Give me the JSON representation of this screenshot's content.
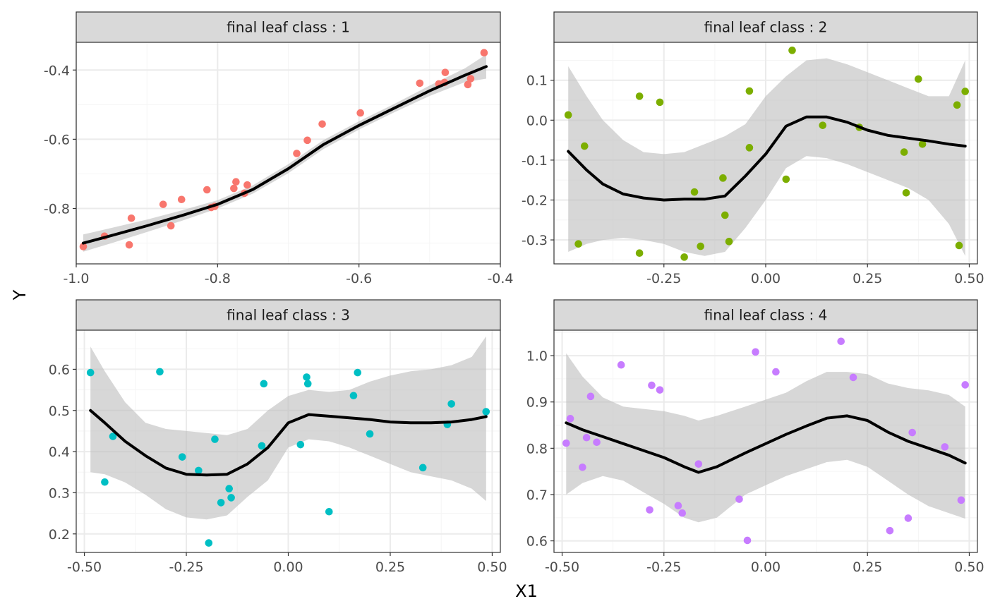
{
  "axis_titles": {
    "x": "X1",
    "y": "Y"
  },
  "colors": {
    "panel_border": "#333333",
    "strip_fill": "#d9d9d9",
    "grid_major": "#ebebeb",
    "grid_minor": "#f5f5f5",
    "smooth_line": "#000000",
    "ribbon": "#bdbdbd"
  },
  "chart_data": [
    {
      "type": "scatter",
      "strip_label": "final leaf class : 1",
      "point_color": "#f8766d",
      "xlim": [
        -1.0,
        -0.4
      ],
      "ylim": [
        -0.96,
        -0.32
      ],
      "x_ticks": [
        -1.0,
        -0.8,
        -0.6,
        -0.4
      ],
      "x_tick_labels": [
        "-1.0",
        "-0.8",
        "-0.6",
        "-0.4"
      ],
      "y_ticks": [
        -0.8,
        -0.6,
        -0.4
      ],
      "y_tick_labels": [
        "-0.8",
        "-0.6",
        "-0.4"
      ],
      "points": [
        [
          -0.99,
          -0.91
        ],
        [
          -0.96,
          -0.88
        ],
        [
          -0.925,
          -0.905
        ],
        [
          -0.922,
          -0.828
        ],
        [
          -0.877,
          -0.788
        ],
        [
          -0.866,
          -0.85
        ],
        [
          -0.851,
          -0.774
        ],
        [
          -0.815,
          -0.746
        ],
        [
          -0.809,
          -0.797
        ],
        [
          -0.804,
          -0.794
        ],
        [
          -0.777,
          -0.742
        ],
        [
          -0.774,
          -0.723
        ],
        [
          -0.762,
          -0.756
        ],
        [
          -0.758,
          -0.732
        ],
        [
          -0.688,
          -0.641
        ],
        [
          -0.673,
          -0.603
        ],
        [
          -0.652,
          -0.556
        ],
        [
          -0.598,
          -0.524
        ],
        [
          -0.514,
          -0.438
        ],
        [
          -0.487,
          -0.44
        ],
        [
          -0.479,
          -0.436
        ],
        [
          -0.478,
          -0.407
        ],
        [
          -0.446,
          -0.442
        ],
        [
          -0.442,
          -0.425
        ],
        [
          -0.423,
          -0.35
        ]
      ],
      "smooth": {
        "x": [
          -0.99,
          -0.95,
          -0.9,
          -0.85,
          -0.8,
          -0.75,
          -0.7,
          -0.65,
          -0.6,
          -0.55,
          -0.5,
          -0.45,
          -0.42
        ],
        "y": [
          -0.9,
          -0.878,
          -0.85,
          -0.82,
          -0.788,
          -0.745,
          -0.685,
          -0.615,
          -0.56,
          -0.51,
          -0.46,
          -0.415,
          -0.39
        ],
        "lower": [
          -0.925,
          -0.9,
          -0.868,
          -0.835,
          -0.8,
          -0.757,
          -0.698,
          -0.628,
          -0.572,
          -0.522,
          -0.475,
          -0.435,
          -0.425
        ],
        "upper": [
          -0.875,
          -0.856,
          -0.832,
          -0.805,
          -0.776,
          -0.733,
          -0.672,
          -0.602,
          -0.548,
          -0.498,
          -0.445,
          -0.395,
          -0.355
        ]
      }
    },
    {
      "type": "scatter",
      "strip_label": "final leaf class : 2",
      "point_color": "#7cae00",
      "xlim": [
        -0.52,
        0.52
      ],
      "ylim": [
        -0.36,
        0.195
      ],
      "x_ticks": [
        -0.25,
        0.0,
        0.25,
        0.5
      ],
      "x_tick_labels": [
        "-0.25",
        "0.00",
        "0.25",
        "0.50"
      ],
      "y_ticks": [
        -0.3,
        -0.2,
        -0.1,
        0.0,
        0.1
      ],
      "y_tick_labels": [
        "-0.3",
        "-0.2",
        "-0.1",
        "0.0",
        "0.1"
      ],
      "points": [
        [
          -0.485,
          0.013
        ],
        [
          -0.46,
          -0.31
        ],
        [
          -0.445,
          -0.065
        ],
        [
          -0.31,
          -0.333
        ],
        [
          -0.31,
          0.06
        ],
        [
          -0.26,
          0.045
        ],
        [
          -0.2,
          -0.343
        ],
        [
          -0.175,
          -0.18
        ],
        [
          -0.16,
          -0.316
        ],
        [
          -0.105,
          -0.145
        ],
        [
          -0.1,
          -0.238
        ],
        [
          -0.09,
          -0.304
        ],
        [
          -0.04,
          -0.069
        ],
        [
          -0.04,
          0.073
        ],
        [
          0.05,
          -0.148
        ],
        [
          0.065,
          0.175
        ],
        [
          0.14,
          -0.013
        ],
        [
          0.23,
          -0.018
        ],
        [
          0.34,
          -0.08
        ],
        [
          0.345,
          -0.182
        ],
        [
          0.375,
          0.103
        ],
        [
          0.385,
          -0.06
        ],
        [
          0.47,
          0.038
        ],
        [
          0.475,
          -0.314
        ],
        [
          0.49,
          0.072
        ]
      ],
      "smooth": {
        "x": [
          -0.485,
          -0.44,
          -0.4,
          -0.35,
          -0.3,
          -0.25,
          -0.2,
          -0.15,
          -0.1,
          -0.05,
          0.0,
          0.05,
          0.1,
          0.15,
          0.2,
          0.25,
          0.3,
          0.35,
          0.4,
          0.45,
          0.49
        ],
        "y": [
          -0.078,
          -0.125,
          -0.16,
          -0.185,
          -0.195,
          -0.2,
          -0.198,
          -0.198,
          -0.19,
          -0.14,
          -0.085,
          -0.015,
          0.008,
          0.008,
          -0.005,
          -0.025,
          -0.038,
          -0.045,
          -0.052,
          -0.06,
          -0.065
        ],
        "lower": [
          -0.33,
          -0.31,
          -0.3,
          -0.295,
          -0.3,
          -0.31,
          -0.33,
          -0.34,
          -0.33,
          -0.27,
          -0.2,
          -0.12,
          -0.09,
          -0.095,
          -0.11,
          -0.13,
          -0.15,
          -0.17,
          -0.2,
          -0.26,
          -0.34
        ],
        "upper": [
          0.135,
          0.06,
          0.0,
          -0.05,
          -0.08,
          -0.085,
          -0.08,
          -0.06,
          -0.04,
          -0.01,
          0.06,
          0.11,
          0.15,
          0.155,
          0.14,
          0.12,
          0.1,
          0.08,
          0.06,
          0.06,
          0.15
        ]
      }
    },
    {
      "type": "scatter",
      "strip_label": "final leaf class : 3",
      "point_color": "#00bfc4",
      "xlim": [
        -0.52,
        0.52
      ],
      "ylim": [
        0.155,
        0.695
      ],
      "x_ticks": [
        -0.5,
        -0.25,
        0.0,
        0.25,
        0.5
      ],
      "x_tick_labels": [
        "-0.50",
        "-0.25",
        "0.00",
        "0.25",
        "0.50"
      ],
      "y_ticks": [
        0.2,
        0.3,
        0.4,
        0.5,
        0.6
      ],
      "y_tick_labels": [
        "0.2",
        "0.3",
        "0.4",
        "0.5",
        "0.6"
      ],
      "points": [
        [
          -0.485,
          0.592
        ],
        [
          -0.45,
          0.326
        ],
        [
          -0.43,
          0.437
        ],
        [
          -0.315,
          0.594
        ],
        [
          -0.26,
          0.387
        ],
        [
          -0.22,
          0.354
        ],
        [
          -0.195,
          0.178
        ],
        [
          -0.18,
          0.43
        ],
        [
          -0.165,
          0.276
        ],
        [
          -0.145,
          0.31
        ],
        [
          -0.14,
          0.288
        ],
        [
          -0.065,
          0.414
        ],
        [
          -0.06,
          0.565
        ],
        [
          0.03,
          0.417
        ],
        [
          0.045,
          0.581
        ],
        [
          0.048,
          0.565
        ],
        [
          0.1,
          0.254
        ],
        [
          0.16,
          0.536
        ],
        [
          0.17,
          0.592
        ],
        [
          0.2,
          0.443
        ],
        [
          0.33,
          0.361
        ],
        [
          0.39,
          0.466
        ],
        [
          0.4,
          0.516
        ],
        [
          0.485,
          0.497
        ]
      ],
      "smooth": {
        "x": [
          -0.485,
          -0.45,
          -0.4,
          -0.35,
          -0.3,
          -0.25,
          -0.2,
          -0.15,
          -0.1,
          -0.05,
          0.0,
          0.05,
          0.1,
          0.15,
          0.2,
          0.25,
          0.3,
          0.35,
          0.4,
          0.45,
          0.485
        ],
        "y": [
          0.5,
          0.47,
          0.425,
          0.39,
          0.36,
          0.345,
          0.343,
          0.345,
          0.37,
          0.41,
          0.47,
          0.49,
          0.486,
          0.482,
          0.478,
          0.472,
          0.47,
          0.47,
          0.472,
          0.478,
          0.485
        ],
        "lower": [
          0.35,
          0.345,
          0.325,
          0.295,
          0.26,
          0.24,
          0.235,
          0.245,
          0.29,
          0.33,
          0.41,
          0.43,
          0.425,
          0.41,
          0.39,
          0.37,
          0.35,
          0.34,
          0.33,
          0.31,
          0.28
        ],
        "upper": [
          0.655,
          0.595,
          0.52,
          0.47,
          0.455,
          0.45,
          0.445,
          0.44,
          0.455,
          0.5,
          0.535,
          0.55,
          0.545,
          0.55,
          0.57,
          0.585,
          0.595,
          0.6,
          0.61,
          0.63,
          0.68
        ]
      }
    },
    {
      "type": "scatter",
      "strip_label": "final leaf class : 4",
      "point_color": "#c77cff",
      "xlim": [
        -0.52,
        0.52
      ],
      "ylim": [
        0.575,
        1.055
      ],
      "x_ticks": [
        -0.5,
        -0.25,
        0.0,
        0.25,
        0.5
      ],
      "x_tick_labels": [
        "-0.50",
        "-0.25",
        "0.00",
        "0.25",
        "0.50"
      ],
      "y_ticks": [
        0.6,
        0.7,
        0.8,
        0.9,
        1.0
      ],
      "y_tick_labels": [
        "0.6",
        "0.7",
        "0.8",
        "0.9",
        "1.0"
      ],
      "points": [
        [
          -0.49,
          0.811
        ],
        [
          -0.48,
          0.864
        ],
        [
          -0.45,
          0.759
        ],
        [
          -0.44,
          0.823
        ],
        [
          -0.43,
          0.912
        ],
        [
          -0.415,
          0.813
        ],
        [
          -0.355,
          0.98
        ],
        [
          -0.285,
          0.667
        ],
        [
          -0.28,
          0.936
        ],
        [
          -0.26,
          0.926
        ],
        [
          -0.215,
          0.676
        ],
        [
          -0.205,
          0.66
        ],
        [
          -0.165,
          0.766
        ],
        [
          -0.065,
          0.69
        ],
        [
          -0.045,
          0.601
        ],
        [
          -0.025,
          1.008
        ],
        [
          0.025,
          0.965
        ],
        [
          0.185,
          1.031
        ],
        [
          0.215,
          0.953
        ],
        [
          0.305,
          0.622
        ],
        [
          0.35,
          0.649
        ],
        [
          0.36,
          0.834
        ],
        [
          0.44,
          0.803
        ],
        [
          0.48,
          0.688
        ],
        [
          0.49,
          0.937
        ]
      ],
      "smooth": {
        "x": [
          -0.49,
          -0.45,
          -0.4,
          -0.35,
          -0.3,
          -0.25,
          -0.2,
          -0.165,
          -0.12,
          -0.05,
          0.0,
          0.05,
          0.1,
          0.15,
          0.2,
          0.25,
          0.3,
          0.35,
          0.4,
          0.45,
          0.49
        ],
        "y": [
          0.855,
          0.84,
          0.825,
          0.81,
          0.795,
          0.78,
          0.76,
          0.748,
          0.76,
          0.79,
          0.81,
          0.83,
          0.848,
          0.865,
          0.87,
          0.86,
          0.835,
          0.815,
          0.8,
          0.785,
          0.768
        ],
        "lower": [
          0.7,
          0.725,
          0.74,
          0.73,
          0.705,
          0.68,
          0.65,
          0.64,
          0.65,
          0.7,
          0.72,
          0.74,
          0.755,
          0.77,
          0.775,
          0.76,
          0.73,
          0.7,
          0.675,
          0.66,
          0.648
        ],
        "upper": [
          1.005,
          0.955,
          0.91,
          0.89,
          0.885,
          0.88,
          0.87,
          0.86,
          0.87,
          0.89,
          0.905,
          0.92,
          0.945,
          0.965,
          0.965,
          0.96,
          0.94,
          0.93,
          0.925,
          0.915,
          0.89
        ]
      }
    }
  ]
}
